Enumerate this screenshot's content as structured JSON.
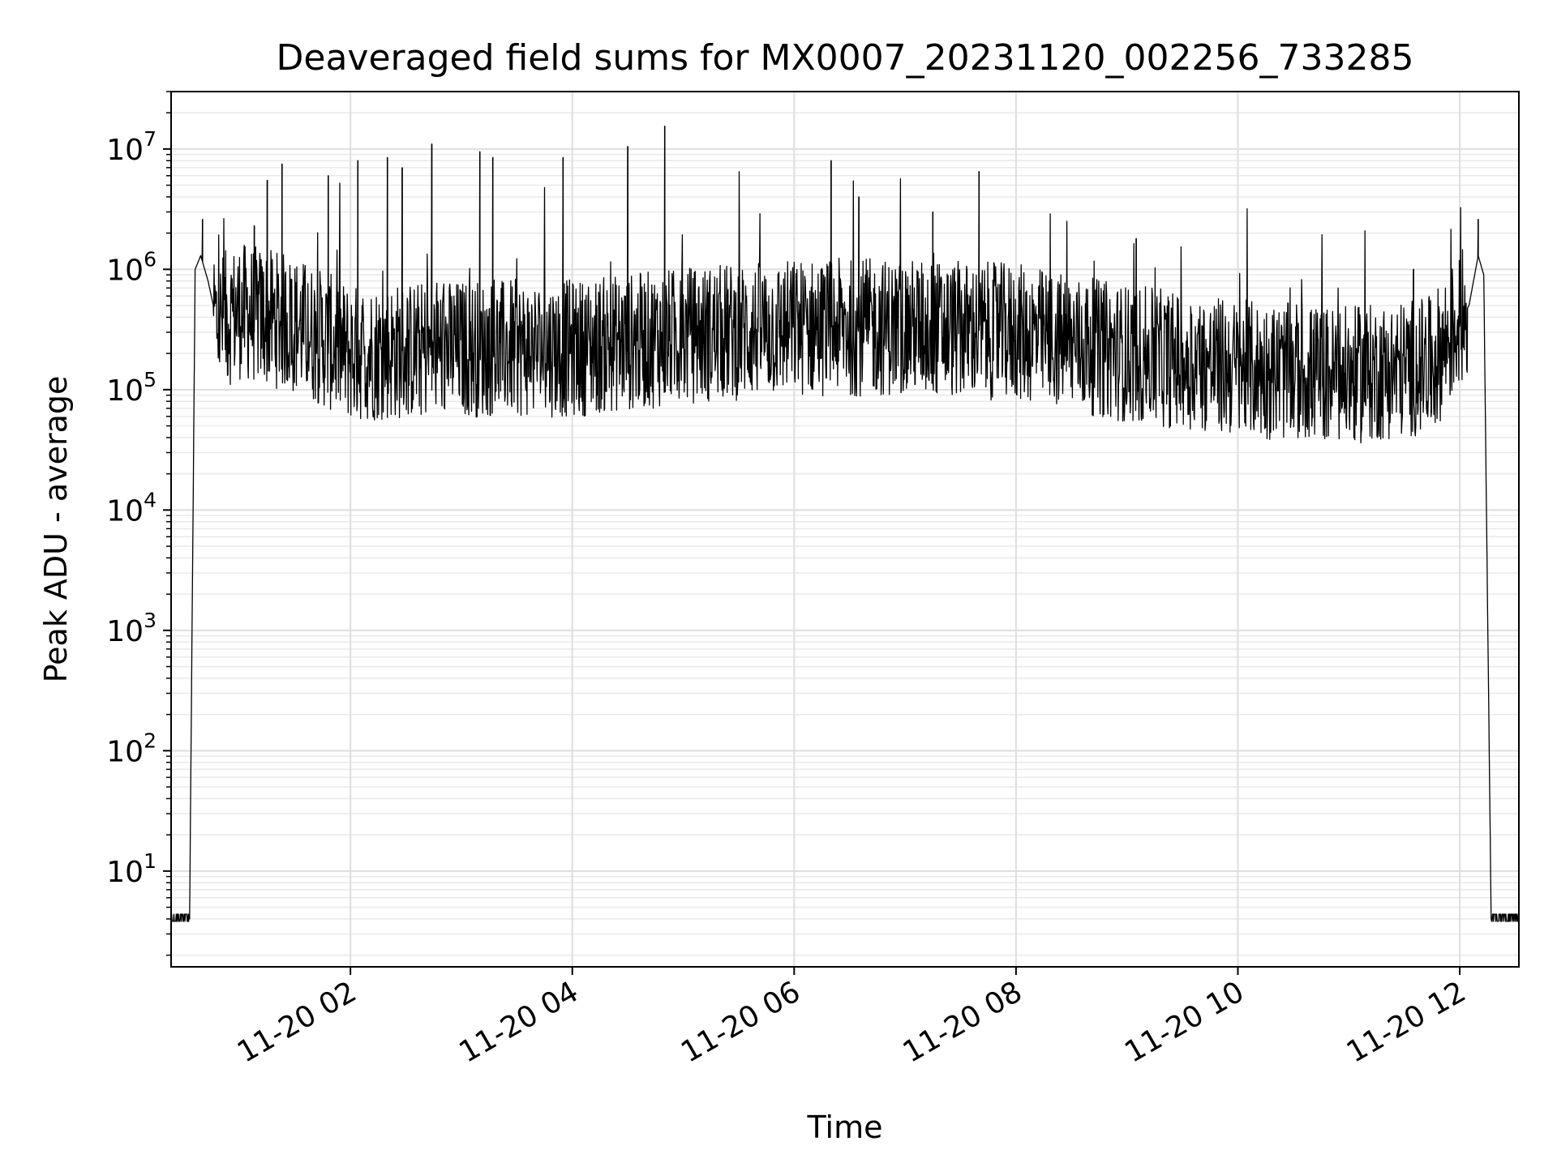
{
  "chart_data": {
    "type": "line",
    "title": "Deaveraged field sums for MX0007_20231120_002256_733285",
    "xlabel": "Time",
    "ylabel": "Peak ADU - average",
    "yscale": "log",
    "ylim": [
      1.6,
      30000000
    ],
    "xlim": [
      "2023-11-20 00:23",
      "2023-11-20 12:32"
    ],
    "grid": true,
    "x_ticks": [
      {
        "label": "11-20 02",
        "time": "2023-11-20 02:00"
      },
      {
        "label": "11-20 04",
        "time": "2023-11-20 04:00"
      },
      {
        "label": "11-20 06",
        "time": "2023-11-20 06:00"
      },
      {
        "label": "11-20 08",
        "time": "2023-11-20 08:00"
      },
      {
        "label": "11-20 10",
        "time": "2023-11-20 10:00"
      },
      {
        "label": "11-20 12",
        "time": "2023-11-20 12:00"
      }
    ],
    "y_ticks": [
      {
        "base": "10",
        "exp": "1",
        "value": 10
      },
      {
        "base": "10",
        "exp": "2",
        "value": 100
      },
      {
        "base": "10",
        "exp": "3",
        "value": 1000
      },
      {
        "base": "10",
        "exp": "4",
        "value": 10000
      },
      {
        "base": "10",
        "exp": "5",
        "value": 100000
      },
      {
        "base": "10",
        "exp": "6",
        "value": 1000000
      },
      {
        "base": "10",
        "exp": "7",
        "value": 10000000
      }
    ],
    "series": [
      {
        "color": "#000000",
        "profile": [
          {
            "x": "2023-11-20 00:23",
            "y": 4
          },
          {
            "x": "2023-11-20 00:33",
            "y": 4
          },
          {
            "x": "2023-11-20 00:36",
            "y": 1000000
          },
          {
            "x": "2023-11-20 00:39",
            "y": 1300000
          },
          {
            "x": "2023-11-20 00:43",
            "y": 800000
          },
          {
            "x": "2023-11-20 00:48",
            "y": 350000
          },
          {
            "x": "2023-11-20 01:00",
            "y": 450000
          },
          {
            "x": "2023-11-20 01:30",
            "y": 350000
          },
          {
            "x": "2023-11-20 02:00",
            "y": 200000
          },
          {
            "x": "2023-11-20 03:00",
            "y": 220000
          },
          {
            "x": "2023-11-20 04:00",
            "y": 220000
          },
          {
            "x": "2023-11-20 05:00",
            "y": 280000
          },
          {
            "x": "2023-11-20 06:00",
            "y": 330000
          },
          {
            "x": "2023-11-20 07:00",
            "y": 330000
          },
          {
            "x": "2023-11-20 08:00",
            "y": 300000
          },
          {
            "x": "2023-11-20 09:00",
            "y": 200000
          },
          {
            "x": "2023-11-20 10:00",
            "y": 150000
          },
          {
            "x": "2023-11-20 11:00",
            "y": 130000
          },
          {
            "x": "2023-11-20 11:45",
            "y": 160000
          },
          {
            "x": "2023-11-20 12:05",
            "y": 500000
          },
          {
            "x": "2023-11-20 12:10",
            "y": 1300000
          },
          {
            "x": "2023-11-20 12:13",
            "y": 900000
          },
          {
            "x": "2023-11-20 12:17",
            "y": 4
          },
          {
            "x": "2023-11-20 12:32",
            "y": 4
          }
        ],
        "peaks": [
          {
            "x": "2023-11-20 00:40",
            "y": 2600000
          },
          {
            "x": "2023-11-20 01:08",
            "y": 2300000
          },
          {
            "x": "2023-11-20 01:15",
            "y": 5500000
          },
          {
            "x": "2023-11-20 01:23",
            "y": 7500000
          },
          {
            "x": "2023-11-20 01:48",
            "y": 6000000
          },
          {
            "x": "2023-11-20 02:04",
            "y": 8000000
          },
          {
            "x": "2023-11-20 02:20",
            "y": 8500000
          },
          {
            "x": "2023-11-20 02:28",
            "y": 7000000
          },
          {
            "x": "2023-11-20 02:44",
            "y": 11000000
          },
          {
            "x": "2023-11-20 03:10",
            "y": 9500000
          },
          {
            "x": "2023-11-20 03:17",
            "y": 8500000
          },
          {
            "x": "2023-11-20 03:55",
            "y": 8500000
          },
          {
            "x": "2023-11-20 04:30",
            "y": 10500000
          },
          {
            "x": "2023-11-20 04:50",
            "y": 15500000
          },
          {
            "x": "2023-11-20 06:20",
            "y": 8000000
          },
          {
            "x": "2023-11-20 06:35",
            "y": 4000000
          },
          {
            "x": "2023-11-20 07:15",
            "y": 3000000
          },
          {
            "x": "2023-11-20 07:40",
            "y": 6500000
          },
          {
            "x": "2023-11-20 09:05",
            "y": 1800000
          },
          {
            "x": "2023-11-20 11:35",
            "y": 1000000
          },
          {
            "x": "2023-11-20 12:10",
            "y": 2600000
          }
        ]
      }
    ]
  }
}
